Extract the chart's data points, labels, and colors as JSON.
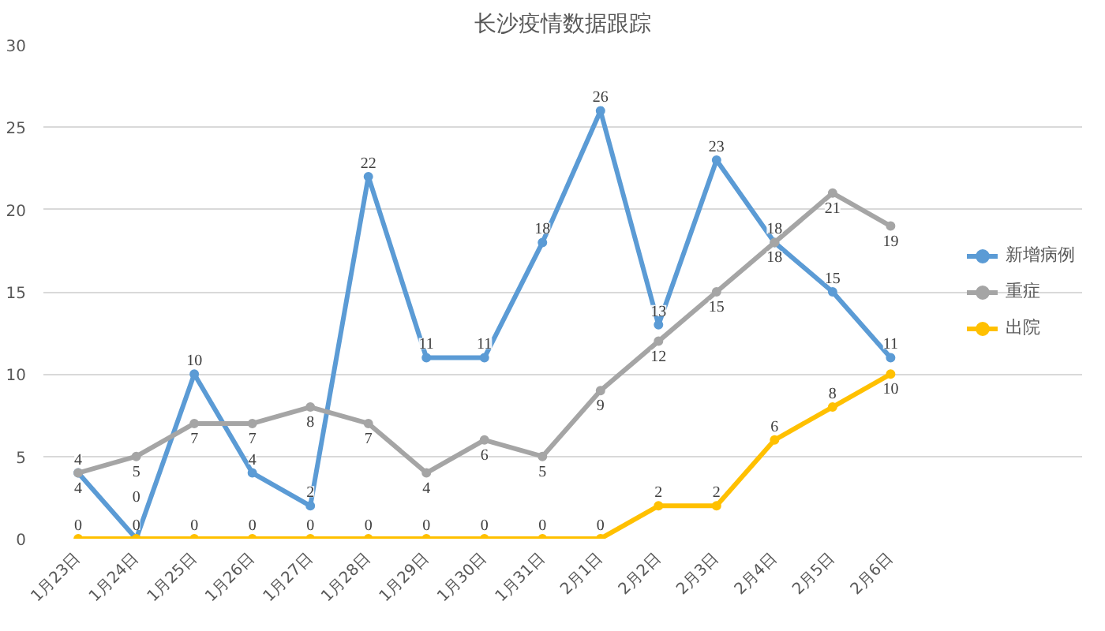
{
  "chart_data": {
    "type": "line",
    "title": "长沙疫情数据跟踪",
    "categories": [
      "1月23日",
      "1月24日",
      "1月25日",
      "1月26日",
      "1月27日",
      "1月28日",
      "1月29日",
      "1月30日",
      "1月31日",
      "2月1日",
      "2月2日",
      "2月3日",
      "2月4日",
      "2月5日",
      "2月6日"
    ],
    "series": [
      {
        "name": "新增病例",
        "color": "#5b9bd5",
        "values": [
          4,
          0,
          10,
          4,
          2,
          22,
          11,
          11,
          18,
          26,
          13,
          23,
          18,
          15,
          11
        ]
      },
      {
        "name": "重症",
        "color": "#a5a5a5",
        "values": [
          4,
          5,
          7,
          7,
          8,
          7,
          4,
          6,
          5,
          9,
          12,
          15,
          18,
          21,
          19
        ]
      },
      {
        "name": "出院",
        "color": "#ffc000",
        "values": [
          0,
          0,
          0,
          0,
          0,
          0,
          0,
          0,
          0,
          0,
          2,
          2,
          6,
          8,
          10
        ]
      }
    ],
    "ylim": [
      0,
      30
    ],
    "yticks": [
      0,
      5,
      10,
      15,
      20,
      25,
      30
    ],
    "grid": "y",
    "legend": "right",
    "marker": "circle",
    "line_style": "solid",
    "data_labels": true
  }
}
